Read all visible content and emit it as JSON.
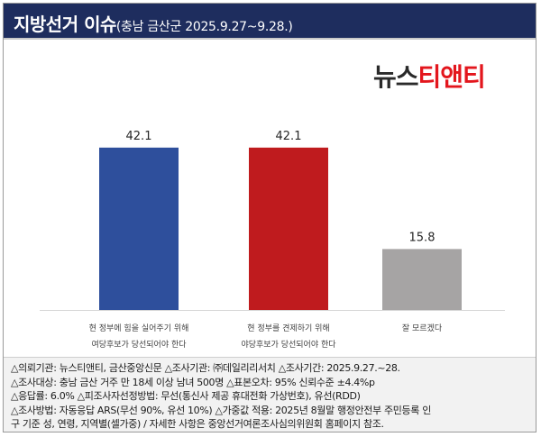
{
  "header": {
    "title": "지방선거 이슈",
    "subtitle": "(충남 금산군 2025.9.27~9.28.)"
  },
  "brand": {
    "part1": "뉴스",
    "part2": "티앤티"
  },
  "chart_data": {
    "type": "bar",
    "title": "지방선거 이슈",
    "categories": [
      [
        "현 정부에 힘을 실어주기 위해",
        "여당후보가 당선되어야 한다"
      ],
      [
        "현 정부를 견제하기 위해",
        "야당후보가 당선되어야 한다"
      ],
      [
        "잘 모르겠다"
      ]
    ],
    "values": [
      42.1,
      42.1,
      15.8
    ],
    "value_labels": [
      "42.1",
      "42.1",
      "15.8"
    ],
    "colors": [
      "#2e4f9c",
      "#bf1b1e",
      "#a6a4a4"
    ],
    "ylim": [
      0,
      50
    ],
    "grid": false,
    "legend": "none"
  },
  "notes": [
    "△의뢰기관: 뉴스티앤티, 금산중앙신문 △조사기관: ㈜데일리리서치 △조사기간: 2025.9.27.~28.",
    "△조사대상: 충남 금산 거주 만 18세 이상 남녀 500명 △표본오차: 95% 신뢰수준 ±4.4%p",
    "△응답률: 6.0% △피조사자선정방법: 무선(통신사 제공 휴대전화 가상번호), 유선(RDD)",
    "△조사방법: 자동응답 ARS(무선 90%, 유선 10%) △가중값 적용: 2025년 8월말 행정안전부 주민등록 인",
    "구 기준 성, 연령, 지역별(셀가중) / 자세한 사항은 중앙선거여론조사심의위원회 홈페이지 참조."
  ]
}
